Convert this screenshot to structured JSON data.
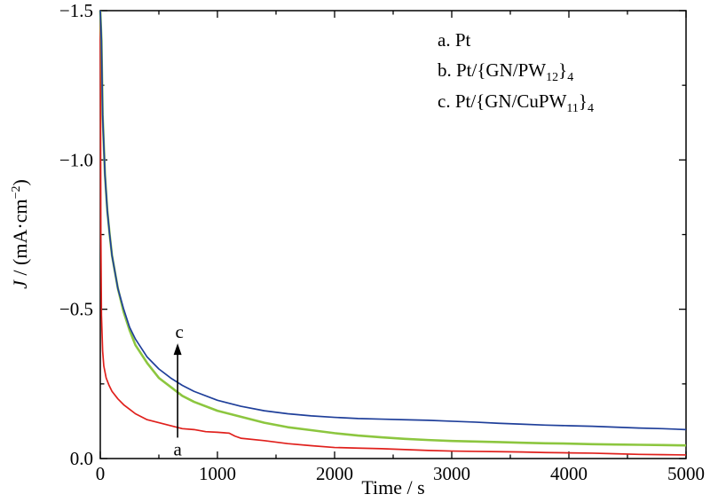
{
  "chart_data": {
    "type": "line",
    "title": "",
    "xlabel": "Time / s",
    "ylabel": {
      "italic": "J",
      "rest": " / (mA·cm",
      "sup": "−2",
      "close": ")"
    },
    "xlim": [
      0,
      5000
    ],
    "ylim": [
      0.0,
      -1.5
    ],
    "x_ticks": [
      0,
      1000,
      2000,
      3000,
      4000,
      5000
    ],
    "x_tick_labels": [
      "0",
      "1000",
      "2000",
      "3000",
      "4000",
      "5000"
    ],
    "y_ticks": [
      0.0,
      -0.5,
      -1.0,
      -1.5
    ],
    "y_tick_labels": [
      "0.0",
      "−0.5",
      "−1.0",
      "−1.5"
    ],
    "grid": false,
    "legend_position": "top-right",
    "legend": [
      {
        "prefix": "a. Pt",
        "base": "",
        "sub": "",
        "mid": "",
        "sub2": ""
      },
      {
        "prefix": "b. Pt/{GN/PW",
        "base": "",
        "sub": "12",
        "mid": "}",
        "sub2": "4"
      },
      {
        "prefix": "c. Pt/{GN/CuPW",
        "base": "",
        "sub": "11",
        "mid": "}",
        "sub2": "4"
      }
    ],
    "annotation": {
      "from_label": "a",
      "to_label": "c",
      "x": 660
    },
    "series": [
      {
        "id": "a",
        "color": "#e0201c",
        "x": [
          0,
          5,
          10,
          20,
          30,
          50,
          75,
          100,
          150,
          200,
          250,
          300,
          350,
          400,
          500,
          600,
          700,
          800,
          900,
          1000,
          1100,
          1150,
          1200,
          1400,
          1600,
          1800,
          2000,
          2200,
          2400,
          2600,
          2800,
          3000,
          3200,
          3400,
          3600,
          3800,
          4000,
          4200,
          4400,
          4600,
          4800,
          5000
        ],
        "y": [
          -1.5,
          -0.75,
          -0.48,
          -0.36,
          -0.31,
          -0.27,
          -0.245,
          -0.225,
          -0.2,
          -0.18,
          -0.165,
          -0.15,
          -0.14,
          -0.13,
          -0.12,
          -0.11,
          -0.1,
          -0.097,
          -0.09,
          -0.088,
          -0.085,
          -0.075,
          -0.068,
          -0.06,
          -0.05,
          -0.043,
          -0.037,
          -0.035,
          -0.033,
          -0.03,
          -0.027,
          -0.025,
          -0.024,
          -0.023,
          -0.022,
          -0.02,
          -0.019,
          -0.018,
          -0.016,
          -0.014,
          -0.013,
          -0.012
        ]
      },
      {
        "id": "b",
        "color": "#8cc63f",
        "x": [
          0,
          10,
          20,
          40,
          60,
          80,
          100,
          150,
          200,
          250,
          300,
          400,
          500,
          600,
          700,
          800,
          1000,
          1200,
          1400,
          1600,
          1800,
          2000,
          2200,
          2400,
          2600,
          2800,
          3000,
          3200,
          3400,
          3600,
          3800,
          4000,
          4200,
          4400,
          4600,
          4800,
          5000
        ],
        "y": [
          -1.5,
          -1.4,
          -1.15,
          -0.95,
          -0.83,
          -0.75,
          -0.68,
          -0.57,
          -0.49,
          -0.43,
          -0.38,
          -0.32,
          -0.27,
          -0.24,
          -0.21,
          -0.19,
          -0.16,
          -0.14,
          -0.12,
          -0.105,
          -0.095,
          -0.085,
          -0.077,
          -0.071,
          -0.066,
          -0.062,
          -0.059,
          -0.057,
          -0.055,
          -0.053,
          -0.051,
          -0.05,
          -0.048,
          -0.047,
          -0.046,
          -0.045,
          -0.044
        ]
      },
      {
        "id": "c",
        "color": "#1f3f9a",
        "x": [
          0,
          10,
          20,
          40,
          60,
          80,
          100,
          150,
          200,
          250,
          300,
          400,
          500,
          600,
          700,
          800,
          1000,
          1200,
          1400,
          1600,
          1800,
          2000,
          2200,
          2400,
          2600,
          2800,
          3000,
          3200,
          3400,
          3600,
          3800,
          4000,
          4200,
          4400,
          4600,
          4800,
          5000
        ],
        "y": [
          -1.5,
          -1.4,
          -1.15,
          -0.95,
          -0.83,
          -0.75,
          -0.68,
          -0.57,
          -0.5,
          -0.44,
          -0.4,
          -0.34,
          -0.3,
          -0.27,
          -0.245,
          -0.225,
          -0.195,
          -0.175,
          -0.16,
          -0.15,
          -0.143,
          -0.138,
          -0.134,
          -0.132,
          -0.13,
          -0.128,
          -0.125,
          -0.122,
          -0.118,
          -0.115,
          -0.112,
          -0.11,
          -0.108,
          -0.105,
          -0.102,
          -0.1,
          -0.097
        ]
      }
    ]
  }
}
